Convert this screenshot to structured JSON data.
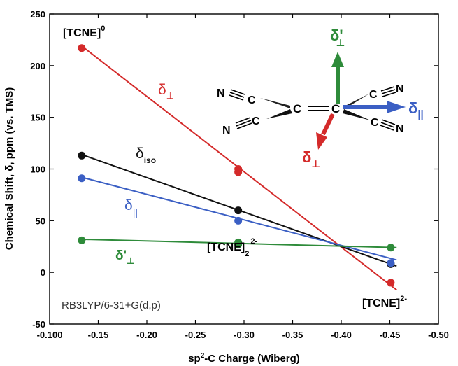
{
  "chart_data": {
    "type": "scatter",
    "xlabel": "sp",
    "xlabel_sup": "2",
    "xlabel_rest": "-C Charge (Wiberg)",
    "ylabel": "Chemical Shift, δ, ppm (vs. TMS)",
    "xlim": [
      -0.1,
      -0.5
    ],
    "ylim": [
      -50,
      250
    ],
    "x_ticks": [
      -0.1,
      -0.15,
      -0.2,
      -0.25,
      -0.3,
      -0.35,
      -0.4,
      -0.45,
      -0.5
    ],
    "x_tick_labels": [
      "-0.100",
      "-0.15",
      "-0.20",
      "-0.25",
      "-0.30",
      "-0.35",
      "-0.40",
      "-0.45",
      "-0.50"
    ],
    "y_ticks": [
      -50,
      0,
      50,
      100,
      150,
      200,
      250
    ],
    "y_tick_labels": [
      "-50",
      "0",
      "50",
      "100",
      "150",
      "200",
      "250"
    ],
    "grid": false,
    "series": [
      {
        "key": "perp",
        "label_main": "δ",
        "label_sub": "⊥",
        "color": "#d42a2a",
        "points": [
          {
            "x": -0.133,
            "y": 217
          },
          {
            "x": -0.294,
            "y": 100
          },
          {
            "x": -0.294,
            "y": 97
          },
          {
            "x": -0.451,
            "y": -10
          }
        ],
        "fit": [
          {
            "x": -0.133,
            "y": 219
          },
          {
            "x": -0.457,
            "y": -17
          }
        ]
      },
      {
        "key": "iso",
        "label_main": "δ",
        "label_sub": "iso",
        "color": "#111111",
        "points": [
          {
            "x": -0.133,
            "y": 113
          },
          {
            "x": -0.294,
            "y": 60
          },
          {
            "x": -0.451,
            "y": 8
          }
        ],
        "fit": [
          {
            "x": -0.133,
            "y": 114
          },
          {
            "x": -0.457,
            "y": 6
          }
        ]
      },
      {
        "key": "par",
        "label_main": "δ",
        "label_sub": "||",
        "color": "#3b5fc4",
        "points": [
          {
            "x": -0.133,
            "y": 91
          },
          {
            "x": -0.294,
            "y": 50
          },
          {
            "x": -0.451,
            "y": 9
          }
        ],
        "fit": [
          {
            "x": -0.133,
            "y": 92
          },
          {
            "x": -0.457,
            "y": 12
          }
        ]
      },
      {
        "key": "perp_prime",
        "label_main": "δ'",
        "label_sub": "⊥",
        "color": "#2e8b3a",
        "points": [
          {
            "x": -0.133,
            "y": 31
          },
          {
            "x": -0.294,
            "y": 29
          },
          {
            "x": -0.294,
            "y": 27
          },
          {
            "x": -0.451,
            "y": 24
          }
        ],
        "fit": [
          {
            "x": -0.133,
            "y": 32
          },
          {
            "x": -0.457,
            "y": 24
          }
        ]
      }
    ],
    "annotations": {
      "tcne0": {
        "main": "[TCNE]",
        "sup": "0"
      },
      "tcne2dimer": {
        "main": "[TCNE]",
        "sub": "2",
        "sup": "2-"
      },
      "tcne2": {
        "main": "[TCNE]",
        "sup": "2-"
      },
      "method": "RB3LYP/6-31+G(d,p)"
    },
    "molecule": {
      "atom_C": "C",
      "atom_N": "N",
      "arrow_up": {
        "main": "δ'",
        "sub": "⊥",
        "color": "#2e8b3a"
      },
      "arrow_right": {
        "main": "δ",
        "sub": "||",
        "color": "#3b5fc4"
      },
      "arrow_down": {
        "main": "δ",
        "sub": "⊥",
        "color": "#d42a2a"
      }
    }
  }
}
